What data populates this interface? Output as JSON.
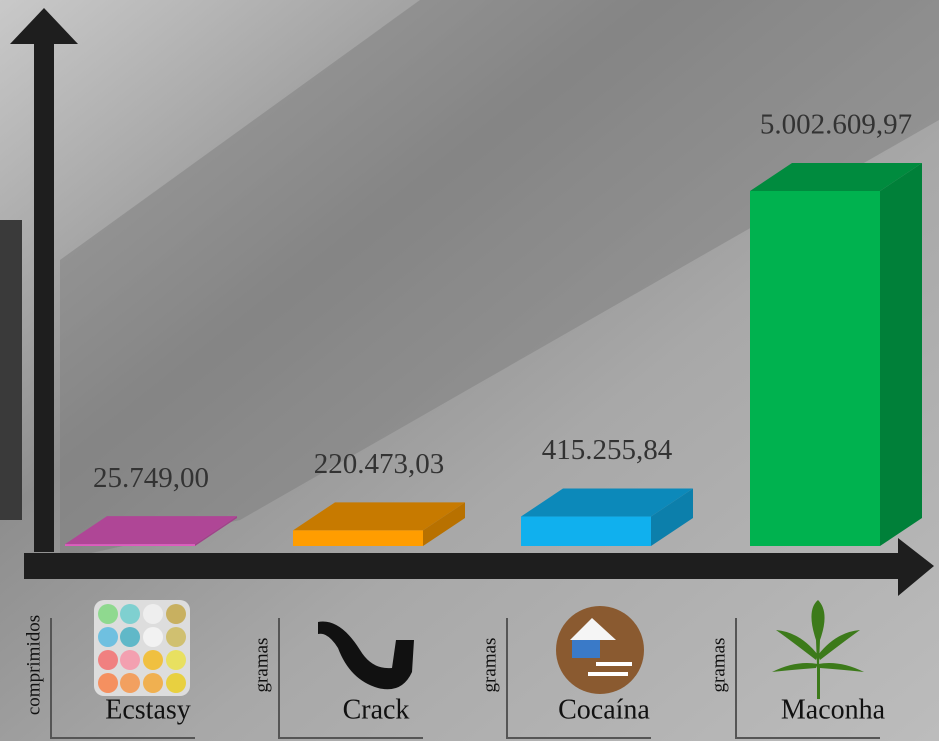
{
  "chart_data": {
    "type": "bar",
    "categories": [
      "Ecstasy",
      "Crack",
      "Cocaína",
      "Maconha"
    ],
    "values": [
      25749.0,
      220473.03,
      415255.84,
      5002609.97
    ],
    "value_labels": [
      "25.749,00",
      "220.473,03",
      "415.255,84",
      "5.002.609,97"
    ],
    "units": [
      "comprimidos",
      "gramas",
      "gramas",
      "gramas"
    ],
    "colors": [
      "#e05ac0",
      "#ff9d00",
      "#10b0ee",
      "#00b24f"
    ]
  }
}
